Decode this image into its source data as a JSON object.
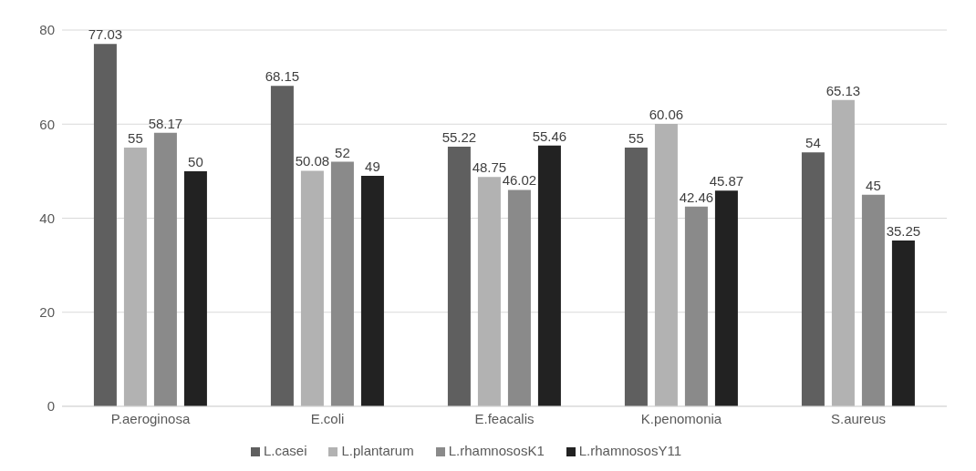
{
  "chart_data": {
    "type": "bar",
    "categories": [
      "P.aeroginosa",
      "E.coli",
      "E.feacalis",
      "K.penomonia",
      "S.aureus"
    ],
    "series": [
      {
        "name": "L.casei",
        "color": "#5f5f5f",
        "values": [
          77.03,
          68.15,
          55.22,
          55,
          54
        ]
      },
      {
        "name": "L.plantarum",
        "color": "#b2b2b2",
        "values": [
          55,
          50.08,
          48.75,
          60.06,
          65.13
        ]
      },
      {
        "name": "L.rhamnososK1",
        "color": "#8a8a8a",
        "values": [
          58.17,
          52,
          46.02,
          42.46,
          45
        ]
      },
      {
        "name": "L.rhamnososY11",
        "color": "#222222",
        "values": [
          50,
          49,
          55.46,
          45.87,
          35.25
        ]
      }
    ],
    "ylim": [
      0,
      80
    ],
    "yticks": [
      0,
      20,
      40,
      60,
      80
    ],
    "grid": "y",
    "legend": "bottom",
    "data_labels": true
  }
}
